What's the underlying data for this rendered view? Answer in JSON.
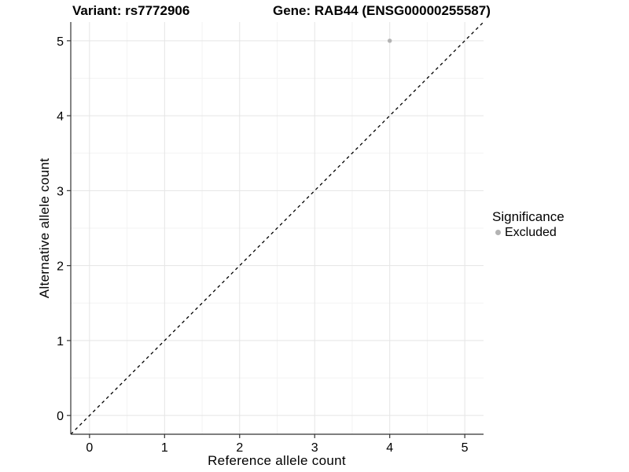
{
  "header": {
    "variant_title": "Variant: rs7772906",
    "gene_title": "Gene: RAB44 (ENSG00000255587)"
  },
  "legend": {
    "title": "Significance",
    "items": [
      {
        "label": "Excluded",
        "color": "#b3b3b3"
      }
    ]
  },
  "colors": {
    "axis_line": "#333333",
    "tick_mark": "#333333",
    "grid_major": "#e5e5e5",
    "grid_minor": "#f3f3f3",
    "reference_line": "#000000",
    "text": "#000000",
    "background": "#ffffff"
  },
  "chart_data": {
    "type": "scatter",
    "title": "Variant: rs7772906    Gene: RAB44 (ENSG00000255587)",
    "xlabel": "Reference allele count",
    "ylabel": "Alternative allele count",
    "xlim": [
      -0.25,
      5.25
    ],
    "ylim": [
      -0.25,
      5.25
    ],
    "x_ticks": [
      0,
      1,
      2,
      3,
      4,
      5
    ],
    "y_ticks": [
      0,
      1,
      2,
      3,
      4,
      5
    ],
    "minor_ticks": [
      0.5,
      1.5,
      2.5,
      3.5,
      4.5
    ],
    "grid": true,
    "legend_position": "right",
    "series": [
      {
        "name": "Excluded",
        "color": "#b3b3b3",
        "points": [
          {
            "x": 4,
            "y": 5
          }
        ]
      }
    ],
    "reference_line": {
      "slope": 1,
      "intercept": 0,
      "style": "dashed",
      "label": "identity"
    }
  }
}
